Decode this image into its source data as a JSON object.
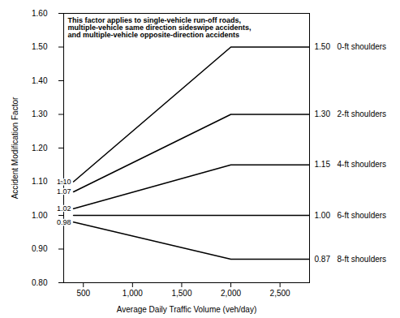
{
  "chart_data": {
    "type": "line",
    "xlabel": "Average Daily Traffic Volume (veh/day)",
    "ylabel": "Accident Modification Factor",
    "annotation": "This factor applies to single-vehicle run-off roads,\nmultiple-vehicle same direction sideswipe accidents,\nand multiple-vehicle opposite-direction accidents",
    "series": [
      {
        "name": "0-ft shoulders",
        "color": "#000000",
        "line_style": "solid",
        "x": [
          400,
          2000,
          2800
        ],
        "values": [
          1.1,
          1.5,
          1.5
        ],
        "value_labels": [
          "1.10",
          null,
          "1.50"
        ]
      },
      {
        "name": "2-ft shoulders",
        "color": "#000000",
        "line_style": "solid",
        "x": [
          400,
          2000,
          2800
        ],
        "values": [
          1.07,
          1.3,
          1.3
        ],
        "value_labels": [
          "1.07",
          null,
          "1.30"
        ]
      },
      {
        "name": "4-ft shoulders",
        "color": "#000000",
        "line_style": "solid",
        "x": [
          400,
          2000,
          2800
        ],
        "values": [
          1.02,
          1.15,
          1.15
        ],
        "value_labels": [
          "1.02",
          null,
          "1.15"
        ]
      },
      {
        "name": "6-ft shoulders",
        "color": "#000000",
        "line_style": "solid",
        "x": [
          400,
          2800
        ],
        "values": [
          1.0,
          1.0
        ],
        "value_labels": [
          null,
          "1.00"
        ]
      },
      {
        "name": "8-ft shoulders",
        "color": "#000000",
        "line_style": "solid",
        "x": [
          400,
          2000,
          2800
        ],
        "values": [
          0.98,
          0.87,
          0.87
        ],
        "value_labels": [
          "0.98",
          null,
          "0.87"
        ]
      }
    ],
    "data_labels": true,
    "grid": false,
    "xlim": [
      300,
      2800
    ],
    "ylim": [
      0.8,
      1.6
    ],
    "xticks": [
      500,
      {
        "value": 1000,
        "label": "1,000"
      },
      {
        "value": 1500,
        "label": "1,500"
      },
      {
        "value": 2000,
        "label": "2,000"
      },
      {
        "value": 2500,
        "label": "2,500"
      }
    ],
    "yticks": [
      {
        "value": 0.8,
        "label": "0.80"
      },
      {
        "value": 0.9,
        "label": "0.90"
      },
      {
        "value": 1.0,
        "label": "1.00"
      },
      {
        "value": 1.1,
        "label": "1.10"
      },
      {
        "value": 1.2,
        "label": "1.20"
      },
      {
        "value": 1.3,
        "label": "1.30"
      },
      {
        "value": 1.4,
        "label": "1.40"
      },
      {
        "value": 1.5,
        "label": "1.50"
      },
      {
        "value": 1.6,
        "label": "1.60"
      }
    ]
  }
}
